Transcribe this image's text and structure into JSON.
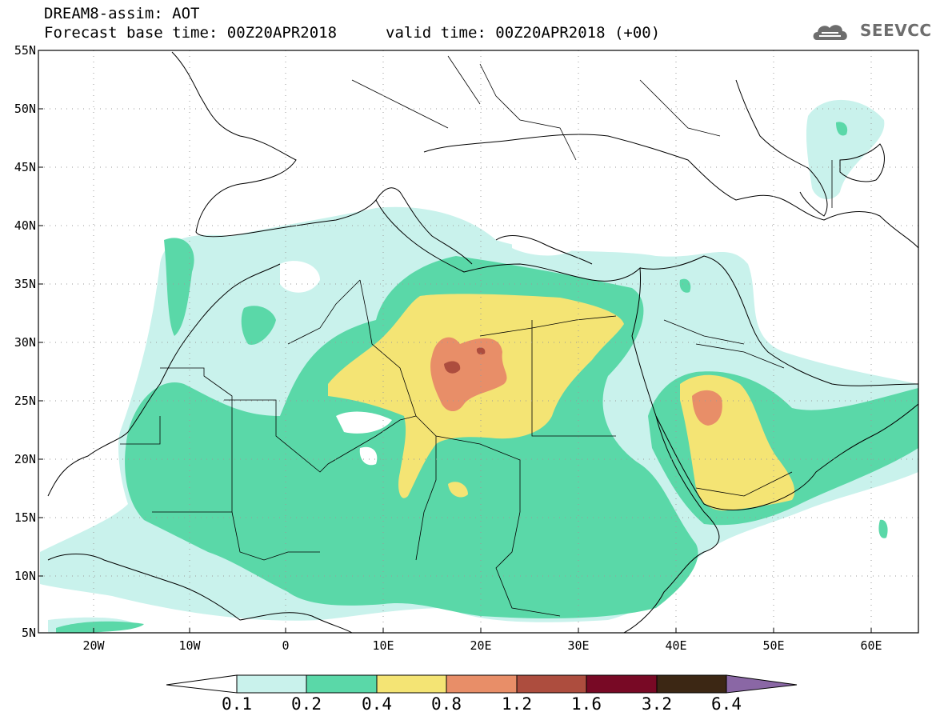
{
  "header": {
    "title": "DREAM8-assim: AOT",
    "forecast": "Forecast base time: 00Z20APR2018",
    "valid": "valid time: 00Z20APR2018 (+00)",
    "logo_text": "SEEVCCC"
  },
  "map": {
    "lat_labels": [
      "55N",
      "50N",
      "45N",
      "40N",
      "35N",
      "30N",
      "25N",
      "20N",
      "15N",
      "10N",
      "5N"
    ],
    "lon_labels": [
      "20W",
      "10W",
      "0",
      "10E",
      "20E",
      "30E",
      "40E",
      "50E",
      "60E"
    ],
    "extent": {
      "lon_min": -25,
      "lon_max": 65,
      "lat_min": 5,
      "lat_max": 55
    }
  },
  "colorbar": {
    "labels": [
      "0.1",
      "0.2",
      "0.4",
      "0.8",
      "1.2",
      "1.6",
      "3.2",
      "6.4"
    ],
    "colors": {
      "c0": "#ffffff",
      "c1": "#c9f2ec",
      "c2": "#5ad8a8",
      "c3": "#f4e474",
      "c4": "#e88e68",
      "c5": "#ad4d3e",
      "c6": "#780925",
      "c7": "#3c2714",
      "c8": "#8a67a5"
    }
  }
}
